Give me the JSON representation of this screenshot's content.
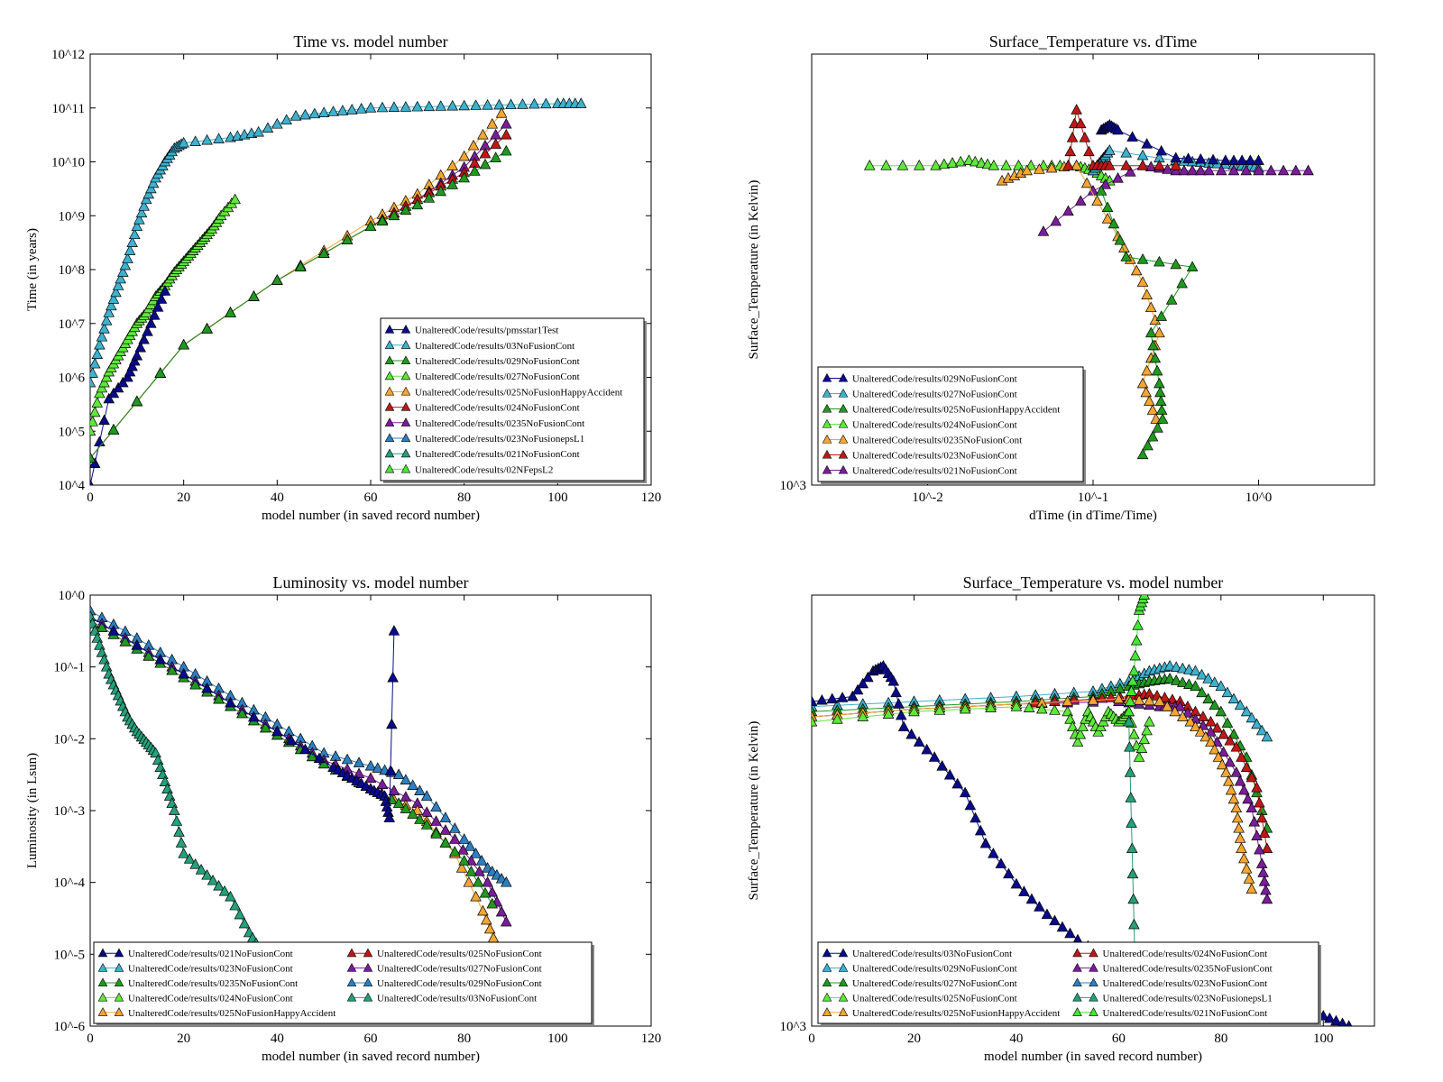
{
  "colors": {
    "navy": "#0a0a8c",
    "cyan": "#3eb1cf",
    "green": "#1f9a1f",
    "lime": "#5ee83a",
    "orange": "#f5a632",
    "red": "#c21717",
    "purple": "#7a1d9a",
    "blue": "#2d7fc0",
    "teal": "#24a07a",
    "brightgreen": "#45e635"
  },
  "chart_data": [
    {
      "type": "line",
      "title": "Time vs. model number",
      "xlabel": "model number  (in saved record number)",
      "ylabel": "Time (in years)",
      "xlim": [
        0,
        120
      ],
      "ylim": [
        4,
        12
      ],
      "ylog": true,
      "xticks": [
        "0",
        "20",
        "40",
        "60",
        "80",
        "100",
        "120"
      ],
      "yticks": [
        "10^4",
        "10^5",
        "10^6",
        "10^7",
        "10^8",
        "10^9",
        "10^10",
        "10^11",
        "10^12"
      ],
      "legend_position": "lower-right",
      "legend": [
        "UnalteredCode/results/pmsstar1Test",
        "UnalteredCode/results/03NoFusionCont",
        "UnalteredCode/results/029NoFusionCont",
        "UnalteredCode/results/027NoFusionCont",
        "UnalteredCode/results/025NoFusionHappyAccident",
        "UnalteredCode/results/024NoFusionCont",
        "UnalteredCode/results/0235NoFusionCont",
        "UnalteredCode/results/023NoFusionepsL1",
        "UnalteredCode/results/021NoFusionCont",
        "UnalteredCode/results/02NFepsL2"
      ],
      "series": [
        {
          "color": "cyan",
          "x": [
            0,
            2,
            4,
            6,
            8,
            10,
            12,
            14,
            16,
            18,
            20,
            30,
            36,
            44,
            52,
            60,
            70,
            80,
            90,
            100,
            105
          ],
          "y": [
            5.9,
            6.6,
            7.2,
            7.7,
            8.2,
            8.8,
            9.3,
            9.7,
            10.0,
            10.25,
            10.35,
            10.45,
            10.55,
            10.85,
            10.93,
            11.0,
            11.02,
            11.04,
            11.06,
            11.08,
            11.08
          ]
        },
        {
          "color": "lime",
          "x": [
            0,
            2,
            4,
            6,
            8,
            10,
            12,
            14,
            16,
            18,
            20,
            22,
            24,
            26,
            28,
            31
          ],
          "y": [
            5.0,
            5.7,
            6.1,
            6.4,
            6.7,
            7.0,
            7.2,
            7.5,
            7.7,
            7.95,
            8.15,
            8.35,
            8.55,
            8.75,
            9.0,
            9.3
          ]
        },
        {
          "color": "navy",
          "x": [
            0,
            4,
            8,
            10,
            13,
            16
          ],
          "y": [
            4.0,
            5.6,
            6.0,
            6.4,
            7.0,
            7.6
          ]
        },
        {
          "color": "orange",
          "x": [
            0,
            20,
            40,
            60,
            70,
            80,
            88
          ],
          "y": [
            4.5,
            6.6,
            7.8,
            8.9,
            9.4,
            10.1,
            10.9
          ]
        },
        {
          "color": "purple",
          "x": [
            0,
            20,
            40,
            60,
            70,
            80,
            89
          ],
          "y": [
            4.5,
            6.6,
            7.8,
            8.8,
            9.3,
            9.9,
            10.7
          ]
        },
        {
          "color": "red",
          "x": [
            0,
            20,
            40,
            60,
            70,
            80,
            89
          ],
          "y": [
            4.5,
            6.6,
            7.8,
            8.8,
            9.3,
            9.8,
            10.5
          ]
        },
        {
          "color": "green",
          "x": [
            0,
            20,
            40,
            60,
            70,
            80,
            89
          ],
          "y": [
            4.5,
            6.6,
            7.8,
            8.8,
            9.2,
            9.7,
            10.2
          ]
        }
      ]
    },
    {
      "type": "line",
      "title": "Surface_Temperature vs. dTime",
      "xlabel": "dTime (in dTime/Time)",
      "ylabel": "Surface_Temperature (in Kelvin)",
      "xlim": [
        -2.7,
        0.7
      ],
      "ylim": [
        3.0,
        3.85
      ],
      "xlog": true,
      "ylog": true,
      "xticks": [
        "10^-2",
        "10^-1",
        "10^0"
      ],
      "yticks": [
        "10^3"
      ],
      "legend_position": "lower-left",
      "legend": [
        "UnalteredCode/results/029NoFusionCont",
        "UnalteredCode/results/027NoFusionCont",
        "UnalteredCode/results/025NoFusionHappyAccident",
        "UnalteredCode/results/024NoFusionCont",
        "UnalteredCode/results/0235NoFusionCont",
        "UnalteredCode/results/023NoFusionCont",
        "UnalteredCode/results/021NoFusionCont"
      ],
      "series": [
        {
          "color": "lime",
          "x": [
            -2.35,
            -1.95,
            -1.75,
            -1.6,
            -1.3,
            -1.1,
            -1.0,
            -0.9
          ],
          "y": [
            3.63,
            3.63,
            3.64,
            3.63,
            3.63,
            3.63,
            3.62,
            3.6
          ]
        },
        {
          "color": "cyan",
          "x": [
            -1.0,
            -0.95,
            -0.9,
            -0.5,
            -0.3,
            -0.1,
            0.0
          ],
          "y": [
            3.62,
            3.64,
            3.66,
            3.64,
            3.635,
            3.63,
            3.625
          ]
        },
        {
          "color": "navy",
          "x": [
            -0.95,
            -0.9,
            -0.85,
            -0.5,
            -0.2,
            0.0
          ],
          "y": [
            3.7,
            3.71,
            3.7,
            3.645,
            3.64,
            3.64
          ]
        },
        {
          "color": "purple",
          "x": [
            -1.3,
            -1.0,
            -0.7,
            -0.5,
            -0.3,
            0.0,
            0.3
          ],
          "y": [
            3.5,
            3.58,
            3.63,
            3.62,
            3.62,
            3.62,
            3.62
          ]
        },
        {
          "color": "orange",
          "x": [
            -1.55,
            -1.4,
            -1.1,
            -0.85,
            -0.7,
            -0.6,
            -0.7,
            -0.62
          ],
          "y": [
            3.6,
            3.62,
            3.63,
            3.49,
            3.4,
            3.3,
            3.2,
            3.13
          ]
        },
        {
          "color": "green",
          "x": [
            -0.95,
            -0.8,
            -0.4,
            -0.65,
            -0.6,
            -0.58,
            -0.7
          ],
          "y": [
            3.58,
            3.45,
            3.43,
            3.3,
            3.2,
            3.13,
            3.06
          ]
        },
        {
          "color": "red",
          "x": [
            -1.15,
            -1.1,
            -1.0,
            -0.9,
            -0.5
          ],
          "y": [
            3.63,
            3.74,
            3.63,
            3.63,
            3.63
          ]
        }
      ]
    },
    {
      "type": "line",
      "title": "Luminosity vs. model number",
      "xlabel": "model number  (in saved record number)",
      "ylabel": "Luminosity (in Lsun)",
      "xlim": [
        0,
        120
      ],
      "ylim": [
        -6,
        0
      ],
      "ylog": true,
      "xticks": [
        "0",
        "20",
        "40",
        "60",
        "80",
        "100",
        "120"
      ],
      "yticks": [
        "10^-6",
        "10^-5",
        "10^-4",
        "10^-3",
        "10^-2",
        "10^-1",
        "10^0"
      ],
      "legend_position": "lower-left",
      "legend": [
        "UnalteredCode/results/021NoFusionCont",
        "UnalteredCode/results/023NoFusionCont",
        "UnalteredCode/results/0235NoFusionCont",
        "UnalteredCode/results/024NoFusionCont",
        "UnalteredCode/results/025NoFusionHappyAccident",
        "UnalteredCode/results/025NoFusionCont",
        "UnalteredCode/results/027NoFusionCont",
        "UnalteredCode/results/029NoFusionCont",
        "UnalteredCode/results/03NoFusionCont"
      ],
      "series": [
        {
          "color": "blue",
          "x": [
            0,
            10,
            20,
            30,
            40,
            50,
            60,
            66,
            72,
            80,
            85,
            89
          ],
          "y": [
            -0.22,
            -0.6,
            -1.0,
            -1.4,
            -1.8,
            -2.2,
            -2.38,
            -2.5,
            -2.8,
            -3.4,
            -3.8,
            -4.0
          ]
        },
        {
          "color": "purple",
          "x": [
            0,
            10,
            20,
            30,
            40,
            50,
            60,
            70,
            78,
            85,
            89
          ],
          "y": [
            -0.3,
            -0.7,
            -1.1,
            -1.5,
            -1.9,
            -2.3,
            -2.55,
            -2.9,
            -3.4,
            -4.0,
            -4.55
          ]
        },
        {
          "color": "orange",
          "x": [
            0,
            10,
            20,
            30,
            40,
            50,
            60,
            70,
            78,
            84,
            87
          ],
          "y": [
            -0.35,
            -0.75,
            -1.15,
            -1.55,
            -1.95,
            -2.35,
            -2.7,
            -3.0,
            -3.6,
            -4.4,
            -4.9
          ]
        },
        {
          "color": "green",
          "x": [
            0,
            10,
            20,
            30,
            40,
            50,
            60,
            66,
            72,
            80,
            86
          ],
          "y": [
            -0.35,
            -0.75,
            -1.15,
            -1.55,
            -1.95,
            -2.35,
            -2.7,
            -2.9,
            -3.2,
            -3.7,
            -4.3
          ]
        },
        {
          "color": "navy",
          "x": [
            0,
            20,
            40,
            52,
            56,
            60,
            63,
            64,
            65
          ],
          "y": [
            -0.3,
            -1.1,
            -1.9,
            -2.4,
            -2.55,
            -2.7,
            -2.8,
            -3.1,
            -0.5
          ]
        },
        {
          "color": "teal",
          "x": [
            0,
            2,
            4,
            6,
            8,
            10,
            12,
            14,
            16,
            18,
            20,
            25,
            30,
            34,
            37
          ],
          "y": [
            -0.3,
            -0.7,
            -1.1,
            -1.4,
            -1.7,
            -1.9,
            -2.05,
            -2.2,
            -2.6,
            -3.0,
            -3.6,
            -3.9,
            -4.2,
            -4.7,
            -5.0
          ]
        }
      ]
    },
    {
      "type": "line",
      "title": "Surface_Temperature vs. model number",
      "xlabel": "model number  (in saved record number)",
      "ylabel": "Surface_Temperature (in Kelvin)",
      "xlim": [
        0,
        110
      ],
      "ylim": [
        3.0,
        3.85
      ],
      "ylog": true,
      "xticks": [
        "0",
        "20",
        "40",
        "60",
        "80",
        "100"
      ],
      "yticks": [
        "10^3"
      ],
      "legend_position": "lower-left",
      "legend": [
        "UnalteredCode/results/03NoFusionCont",
        "UnalteredCode/results/029NoFusionCont",
        "UnalteredCode/results/027NoFusionCont",
        "UnalteredCode/results/025NoFusionCont",
        "UnalteredCode/results/025NoFusionHappyAccident",
        "UnalteredCode/results/024NoFusionCont",
        "UnalteredCode/results/0235NoFusionCont",
        "UnalteredCode/results/023NoFusionCont",
        "UnalteredCode/results/023NoFusionepsL1",
        "UnalteredCode/results/021NoFusionCont"
      ],
      "series": [
        {
          "color": "cyan",
          "x": [
            0,
            20,
            40,
            55,
            62,
            66,
            70,
            75,
            80,
            85,
            89
          ],
          "y": [
            3.63,
            3.64,
            3.65,
            3.66,
            3.68,
            3.7,
            3.71,
            3.7,
            3.67,
            3.62,
            3.57
          ]
        },
        {
          "color": "green",
          "x": [
            0,
            20,
            40,
            55,
            62,
            66,
            70,
            75,
            80,
            85,
            89
          ],
          "y": [
            3.62,
            3.63,
            3.64,
            3.65,
            3.67,
            3.68,
            3.685,
            3.67,
            3.62,
            3.53,
            3.39
          ]
        },
        {
          "color": "red",
          "x": [
            0,
            20,
            40,
            55,
            62,
            66,
            72,
            78,
            83,
            87,
            89
          ],
          "y": [
            3.61,
            3.625,
            3.635,
            3.645,
            3.65,
            3.655,
            3.64,
            3.6,
            3.55,
            3.47,
            3.35
          ]
        },
        {
          "color": "purple",
          "x": [
            0,
            20,
            40,
            60,
            68,
            72,
            78,
            83,
            86,
            88,
            89
          ],
          "y": [
            3.61,
            3.625,
            3.635,
            3.64,
            3.63,
            3.63,
            3.58,
            3.5,
            3.43,
            3.32,
            3.25
          ]
        },
        {
          "color": "orange",
          "x": [
            0,
            20,
            40,
            60,
            68,
            74,
            78,
            81,
            83,
            84,
            86
          ],
          "y": [
            3.61,
            3.625,
            3.635,
            3.645,
            3.64,
            3.6,
            3.56,
            3.5,
            3.43,
            3.35,
            3.27
          ]
        },
        {
          "color": "lime",
          "x": [
            0,
            20,
            40,
            50,
            52,
            54,
            56,
            58,
            60,
            62,
            64,
            66
          ],
          "y": [
            3.6,
            3.62,
            3.63,
            3.62,
            3.56,
            3.62,
            3.58,
            3.62,
            3.6,
            3.62,
            3.53,
            3.6
          ]
        },
        {
          "color": "navy",
          "x": [
            0,
            8,
            12,
            14,
            16,
            18,
            24,
            30,
            34,
            40,
            46,
            52,
            60,
            80,
            100,
            105
          ],
          "y": [
            3.64,
            3.65,
            3.7,
            3.71,
            3.68,
            3.59,
            3.53,
            3.46,
            3.36,
            3.28,
            3.22,
            3.17,
            3.12,
            3.07,
            3.02,
            3.0
          ]
        },
        {
          "color": "teal",
          "x": [
            62,
            62.5,
            63,
            63.5
          ],
          "y": [
            3.6,
            3.4,
            3.2,
            3.0
          ]
        },
        {
          "color": "brightgreen",
          "x": [
            62,
            63,
            64,
            65
          ],
          "y": [
            3.62,
            3.7,
            3.82,
            3.85
          ]
        }
      ]
    }
  ]
}
